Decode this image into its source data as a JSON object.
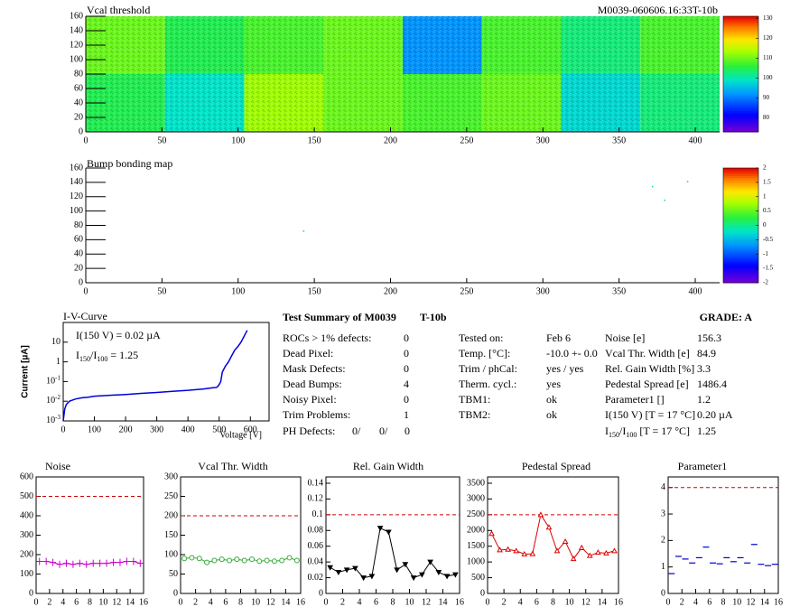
{
  "chart_data": [
    {
      "type": "heatmap",
      "title": "Vcal threshold",
      "label": "M0039-060606.16:33T-10b",
      "xlim": [
        0,
        416
      ],
      "ylim": [
        0,
        160
      ],
      "xticks": [
        0,
        50,
        100,
        150,
        200,
        250,
        300,
        350,
        400
      ],
      "yticks": [
        0,
        20,
        40,
        60,
        80,
        100,
        120,
        140,
        160
      ],
      "z": [
        [
          105,
          99,
          113,
          110,
          108,
          110,
          98,
          103
        ],
        [
          110,
          105,
          108,
          110,
          92,
          108,
          103,
          108
        ]
      ],
      "zlim": [
        73,
        131
      ],
      "zticks": [
        80,
        90,
        100,
        110,
        120,
        130
      ]
    },
    {
      "type": "map",
      "title": "Bump bonding map",
      "xlim": [
        0,
        416
      ],
      "ylim": [
        0,
        160
      ],
      "xticks": [
        0,
        50,
        100,
        150,
        200,
        250,
        300,
        350,
        400
      ],
      "yticks": [
        0,
        20,
        40,
        60,
        80,
        100,
        120,
        140,
        160
      ],
      "points": {
        "x": [
          143,
          372,
          380,
          395
        ],
        "y": [
          72,
          134,
          115,
          141
        ],
        "z": [
          0,
          0,
          0,
          0
        ]
      },
      "zlim": [
        -2,
        2
      ],
      "zticks": [
        -2,
        -1.5,
        -1,
        -0.5,
        0,
        0.5,
        1,
        1.5,
        2
      ]
    },
    {
      "type": "iv",
      "title": "I-V-Curve",
      "xlabel": "Voltage [V]",
      "ylabel": "Current [µA]",
      "log": true,
      "color": "#0000dd",
      "xlim": [
        0,
        660
      ],
      "ylim": [
        0.001,
        100
      ],
      "xticks": [
        0,
        100,
        200,
        300,
        400,
        500,
        600
      ],
      "yticks": [
        {
          "value": 0.001,
          "label": "10",
          "exponent": "-3"
        },
        {
          "value": 0.01,
          "label": "10",
          "exponent": "-2"
        },
        {
          "value": 0.1,
          "label": "10",
          "exponent": "-1"
        },
        1,
        10
      ],
      "x": [
        0,
        5,
        10,
        20,
        40,
        60,
        80,
        100,
        150,
        200,
        250,
        300,
        350,
        400,
        450,
        480,
        490,
        495,
        500,
        505,
        510,
        520,
        530,
        540,
        550,
        560,
        570,
        580,
        590
      ],
      "y": [
        0.001,
        0.004,
        0.007,
        0.01,
        0.013,
        0.015,
        0.016,
        0.018,
        0.02,
        0.022,
        0.025,
        0.028,
        0.032,
        0.036,
        0.042,
        0.048,
        0.05,
        0.055,
        0.07,
        0.1,
        0.3,
        0.6,
        1,
        2,
        4,
        6,
        10,
        20,
        40
      ],
      "annotations": [
        {
          "segments": [
            {
              "text": "I(150 V) = 0.02 µA"
            }
          ]
        },
        {
          "segments": [
            {
              "text": "I"
            },
            {
              "text": "150",
              "sub": true
            },
            {
              "text": "/I"
            },
            {
              "text": "100",
              "sub": true
            },
            {
              "text": " =  1.25"
            }
          ]
        }
      ]
    },
    {
      "type": "line",
      "title": "Noise",
      "color": "#cc00cc",
      "marker": "cross",
      "line": true,
      "threshold": 500,
      "xlim": [
        0,
        16
      ],
      "ylim": [
        0,
        600
      ],
      "xticks": [
        0,
        2,
        4,
        6,
        8,
        10,
        12,
        14,
        16
      ],
      "yticks": [
        0,
        100,
        200,
        300,
        400,
        500,
        600
      ],
      "x": [
        0.5,
        1.5,
        2.5,
        3.5,
        4.5,
        5.5,
        6.5,
        7.5,
        8.5,
        9.5,
        10.5,
        11.5,
        12.5,
        13.5,
        14.5,
        15.5
      ],
      "values": [
        165,
        165,
        160,
        150,
        155,
        150,
        155,
        150,
        155,
        155,
        155,
        160,
        160,
        165,
        165,
        155
      ]
    },
    {
      "type": "line",
      "title": "Vcal Thr. Width",
      "color": "#33aa33",
      "marker": "circle",
      "line": true,
      "threshold": 200,
      "xlim": [
        0,
        16
      ],
      "ylim": [
        0,
        300
      ],
      "xticks": [
        0,
        2,
        4,
        6,
        8,
        10,
        12,
        14,
        16
      ],
      "yticks": [
        0,
        50,
        100,
        150,
        200,
        250,
        300
      ],
      "x": [
        0.5,
        1.5,
        2.5,
        3.5,
        4.5,
        5.5,
        6.5,
        7.5,
        8.5,
        9.5,
        10.5,
        11.5,
        12.5,
        13.5,
        14.5,
        15.5
      ],
      "values": [
        90,
        92,
        90,
        80,
        85,
        88,
        85,
        88,
        85,
        88,
        83,
        85,
        83,
        85,
        92,
        85
      ]
    },
    {
      "type": "line",
      "title": "Rel. Gain Width",
      "color": "#000000",
      "marker": "triangle-down",
      "line": true,
      "threshold": 0.1,
      "xlim": [
        0,
        16
      ],
      "ylim": [
        0,
        0.148
      ],
      "xticks": [
        0,
        2,
        4,
        6,
        8,
        10,
        12,
        14,
        16
      ],
      "yticks": [
        0,
        0.02,
        0.04,
        0.06,
        0.08,
        0.1,
        0.12,
        0.14
      ],
      "x": [
        0.5,
        1.5,
        2.5,
        3.5,
        4.5,
        5.5,
        6.5,
        7.5,
        8.5,
        9.5,
        10.5,
        11.5,
        12.5,
        13.5,
        14.5,
        15.5
      ],
      "values": [
        0.033,
        0.027,
        0.03,
        0.032,
        0.02,
        0.022,
        0.083,
        0.078,
        0.03,
        0.037,
        0.02,
        0.024,
        0.04,
        0.027,
        0.022,
        0.024
      ]
    },
    {
      "type": "line",
      "title": "Pedestal Spread",
      "color": "#dd0000",
      "marker": "triangle-up",
      "line": true,
      "threshold": 2500,
      "xlim": [
        0,
        16
      ],
      "ylim": [
        0,
        3700
      ],
      "xticks": [
        0,
        2,
        4,
        6,
        8,
        10,
        12,
        14,
        16
      ],
      "yticks": [
        0,
        500,
        1000,
        1500,
        2000,
        2500,
        3000,
        3500
      ],
      "x": [
        0.5,
        1.5,
        2.5,
        3.5,
        4.5,
        5.5,
        6.5,
        7.5,
        8.5,
        9.5,
        10.5,
        11.5,
        12.5,
        13.5,
        14.5,
        15.5
      ],
      "values": [
        1900,
        1380,
        1400,
        1350,
        1250,
        1260,
        2500,
        2100,
        1350,
        1650,
        1100,
        1450,
        1200,
        1300,
        1280,
        1350
      ]
    },
    {
      "type": "line",
      "title": "Parameter1",
      "color": "#0000cc",
      "marker": "dash",
      "line": false,
      "threshold": 4,
      "xlim": [
        0,
        16
      ],
      "ylim": [
        0,
        4.4
      ],
      "xticks": [
        0,
        2,
        4,
        6,
        8,
        10,
        12,
        14,
        16
      ],
      "yticks": [
        0,
        1,
        2,
        3,
        4
      ],
      "x": [
        0.5,
        1.5,
        2.5,
        3.5,
        4.5,
        5.5,
        6.5,
        7.5,
        8.5,
        9.5,
        10.5,
        11.5,
        12.5,
        13.5,
        14.5,
        15.5
      ],
      "values": [
        0.75,
        1.4,
        1.3,
        1.15,
        1.35,
        1.75,
        1.15,
        1.12,
        1.35,
        1.2,
        1.35,
        1.15,
        1.85,
        1.1,
        1.05,
        1.1
      ]
    }
  ],
  "summary": {
    "title": "Test Summary of M0039",
    "tag": "T-10b",
    "grade": "GRADE:  A",
    "defects": [
      {
        "label": "ROCs > 1% defects:",
        "value": 0
      },
      {
        "label": "Dead Pixel:",
        "value": 0
      },
      {
        "label": "Mask Defects:",
        "value": 0
      },
      {
        "label": "Dead Bumps:",
        "value": 4
      },
      {
        "label": "Noisy Pixel:",
        "value": 0
      },
      {
        "label": "Trim Problems:",
        "value": 1
      }
    ],
    "ph_defects": {
      "label": "PH Defects:",
      "values": [
        {
          "text": "0/",
          "color": "#000000"
        },
        {
          "text": "0/",
          "color": "#ee0000"
        },
        {
          "text": "0",
          "color": "#0000ee"
        }
      ]
    },
    "conditions": [
      {
        "label": "Tested on:",
        "value": "Feb 6"
      },
      {
        "label": "Temp. [°C]:",
        "value": "-10.0 +- 0.0"
      },
      {
        "label": "Trim / phCal:",
        "value": "yes / yes"
      },
      {
        "label": "Therm. cycl.:",
        "value": "yes"
      },
      {
        "label": "TBM1:",
        "value": "ok"
      },
      {
        "label": "TBM2:",
        "value": "ok"
      }
    ],
    "results": [
      {
        "segments": [
          {
            "text": "Noise [e]"
          }
        ],
        "value": 156.3
      },
      {
        "segments": [
          {
            "text": "Vcal Thr. Width [e]"
          }
        ],
        "value": 84.9
      },
      {
        "segments": [
          {
            "text": "Rel. Gain Width [%]"
          }
        ],
        "value": 3.3
      },
      {
        "segments": [
          {
            "text": "Pedestal Spread [e]"
          }
        ],
        "value": 1486.4
      },
      {
        "segments": [
          {
            "text": "Parameter1 []"
          }
        ],
        "value": 1.2
      },
      {
        "segments": [
          {
            "text": "I(150 V) [T = 17 °C]"
          }
        ],
        "value": "0.20 µA"
      },
      {
        "segments": [
          {
            "text": "I"
          },
          {
            "text": "150",
            "sub": true
          },
          {
            "text": "/I"
          },
          {
            "text": "100",
            "sub": true
          },
          {
            "text": "  [T = 17 °C]"
          }
        ],
        "value": 1.25
      }
    ]
  }
}
